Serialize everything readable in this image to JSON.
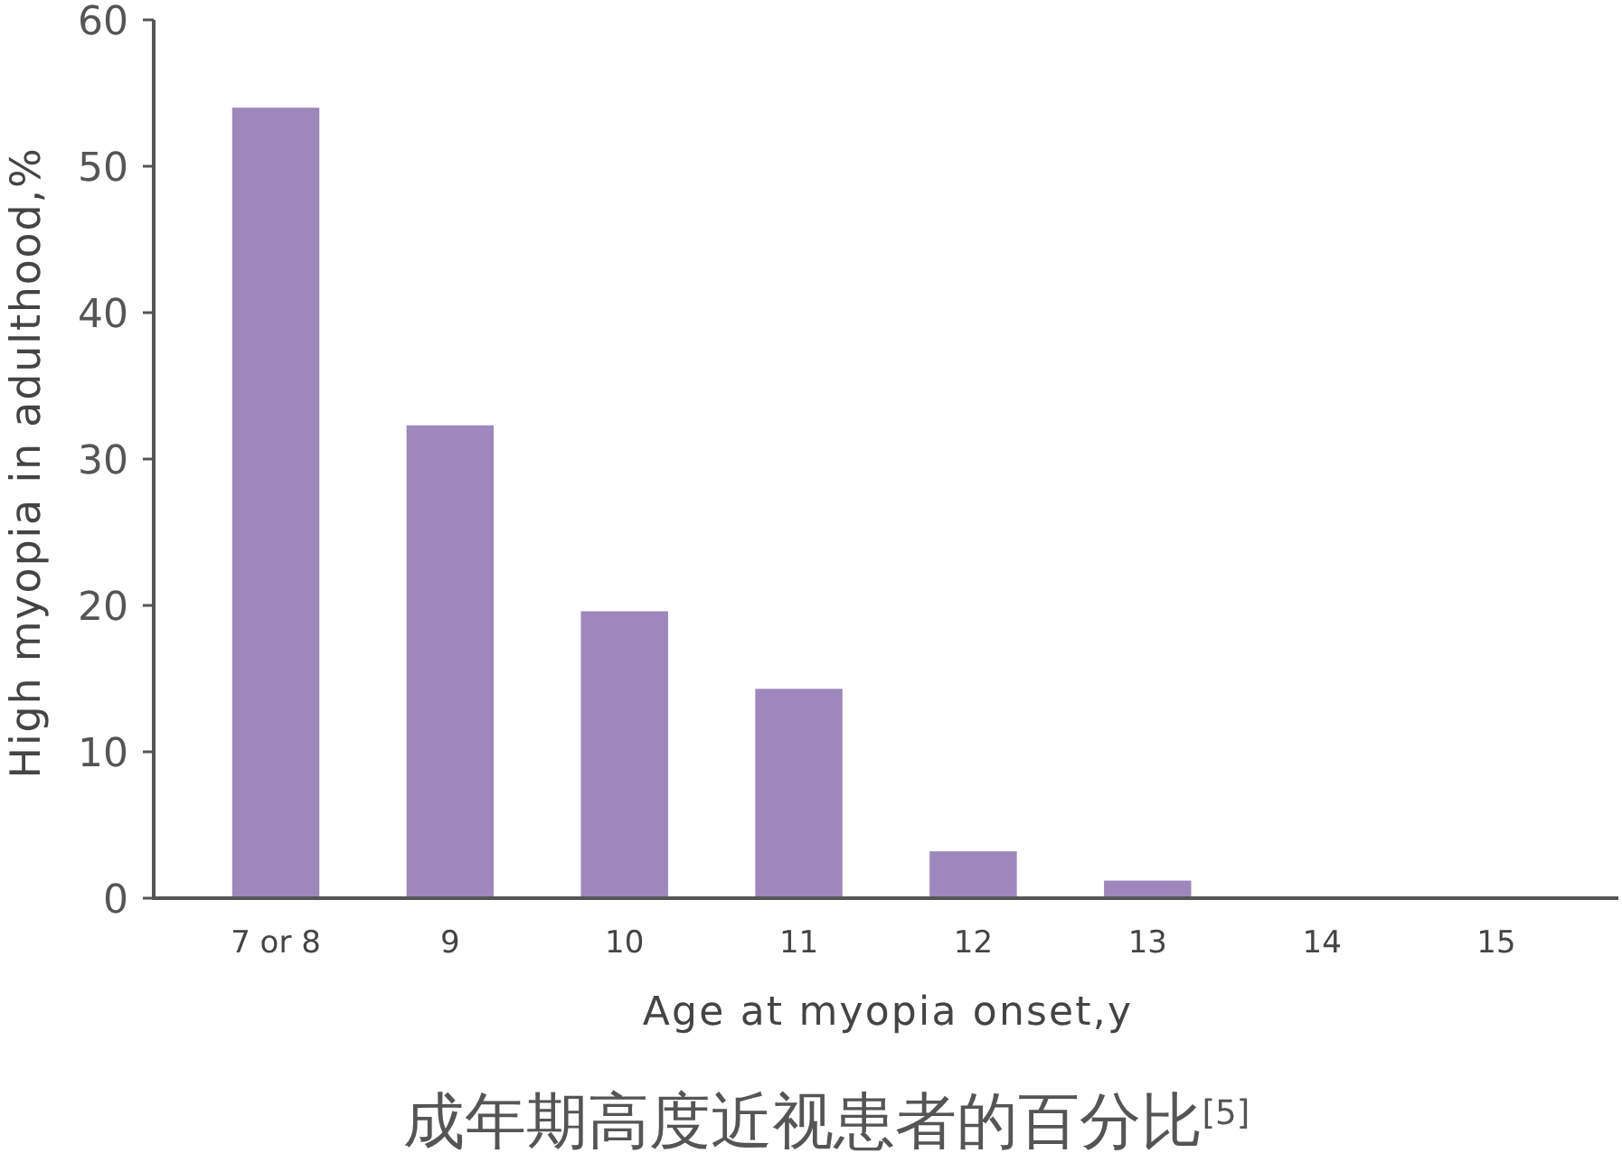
{
  "chart_data": {
    "type": "bar",
    "xlabel": "Age at myopia onset,y",
    "ylabel": "High myopia in adulthood,%",
    "annotations": [
      "成年期高度近视患者的百分比$^{[5]}$"
    ],
    "categories": [
      "7 or 8",
      "9",
      "10",
      "11",
      "12",
      "13",
      "14",
      "15"
    ],
    "values": [
      54,
      32.3,
      19.6,
      14.3,
      3.2,
      1.2,
      0,
      0
    ],
    "color": "#9d87bd",
    "ylim": [
      0,
      60
    ],
    "yticks": [
      0,
      10,
      20,
      30,
      40,
      50,
      60
    ]
  }
}
